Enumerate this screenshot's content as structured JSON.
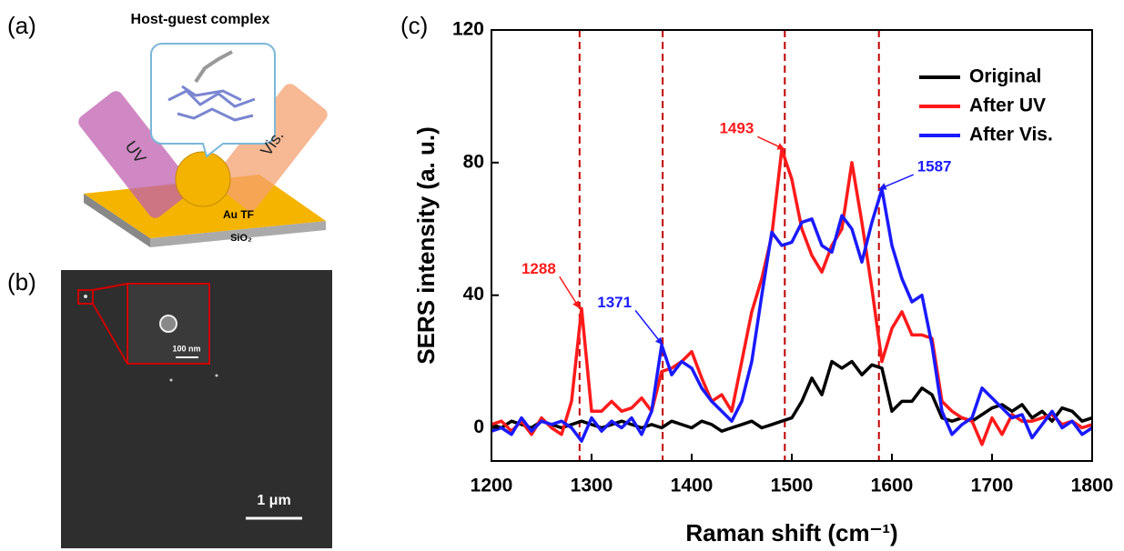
{
  "panels": {
    "a": {
      "label": "(a)",
      "title": "Host-guest complex",
      "uv": "UV",
      "vis": "Vis.",
      "film": "Au TF",
      "substrate": "SiO₂"
    },
    "b": {
      "label": "(b)",
      "inset_scale": "100 nm",
      "scale": "1 μm"
    },
    "c": {
      "label": "(c)"
    }
  },
  "chart_data": {
    "type": "line",
    "xlabel": "Raman shift (cm⁻¹)",
    "ylabel": "SERS intensity (a. u.)",
    "x": [
      1200,
      1210,
      1220,
      1230,
      1240,
      1250,
      1260,
      1270,
      1280,
      1290,
      1300,
      1310,
      1320,
      1330,
      1340,
      1350,
      1360,
      1370,
      1380,
      1390,
      1400,
      1410,
      1420,
      1430,
      1440,
      1450,
      1460,
      1470,
      1480,
      1490,
      1500,
      1510,
      1520,
      1530,
      1540,
      1550,
      1560,
      1570,
      1580,
      1590,
      1600,
      1610,
      1620,
      1630,
      1640,
      1650,
      1660,
      1670,
      1680,
      1690,
      1700,
      1710,
      1720,
      1730,
      1740,
      1750,
      1760,
      1770,
      1780,
      1790,
      1800
    ],
    "series": [
      {
        "name": "Original",
        "color": "#000000",
        "values": [
          1,
          0,
          2,
          1,
          0,
          2,
          1,
          0,
          1,
          2,
          1,
          0,
          1,
          2,
          1,
          0,
          1,
          0,
          2,
          1,
          0,
          2,
          1,
          -1,
          0,
          1,
          2,
          0,
          1,
          2,
          3,
          8,
          15,
          10,
          20,
          18,
          20,
          16,
          19,
          18,
          5,
          8,
          8,
          12,
          10,
          3,
          2,
          3,
          2,
          4,
          6,
          7,
          5,
          7,
          3,
          5,
          2,
          6,
          5,
          2,
          3
        ]
      },
      {
        "name": "After UV",
        "color": "#ff1a1a",
        "values": [
          1,
          2,
          -1,
          2,
          -2,
          3,
          0,
          -2,
          8,
          36,
          5,
          5,
          8,
          5,
          6,
          9,
          5,
          17,
          18,
          20,
          23,
          15,
          8,
          10,
          5,
          20,
          35,
          45,
          58,
          84,
          75,
          60,
          52,
          47,
          55,
          60,
          80,
          62,
          42,
          20,
          30,
          35,
          28,
          28,
          27,
          8,
          5,
          3,
          2,
          -5,
          3,
          -2,
          4,
          2,
          2,
          3,
          4,
          1,
          2,
          0,
          1
        ]
      },
      {
        "name": "After Vis.",
        "color": "#1a1aff",
        "values": [
          -1,
          0,
          -2,
          3,
          -1,
          2,
          1,
          2,
          0,
          -4,
          3,
          -1,
          2,
          0,
          3,
          -2,
          5,
          25,
          16,
          20,
          18,
          12,
          8,
          5,
          2,
          8,
          20,
          40,
          59,
          55,
          56,
          62,
          63,
          55,
          53,
          64,
          60,
          50,
          62,
          72,
          55,
          45,
          38,
          40,
          25,
          5,
          -2,
          1,
          3,
          12,
          9,
          6,
          3,
          4,
          -3,
          1,
          5,
          0,
          2,
          -2,
          0
        ]
      }
    ],
    "annotations": [
      {
        "x": 1288,
        "y": 36,
        "color": "#ff1a1a"
      },
      {
        "x": 1371,
        "y": 25,
        "color": "#1a1aff"
      },
      {
        "x": 1493,
        "y": 84,
        "color": "#ff1a1a"
      },
      {
        "x": 1587,
        "y": 72,
        "color": "#1a1aff"
      }
    ],
    "reference_line_color": "#c00000",
    "xlim": [
      1200,
      1800
    ],
    "ylim": [
      -10,
      120
    ],
    "xticks": [
      1200,
      1300,
      1400,
      1500,
      1600,
      1700,
      1800
    ],
    "yticks": [
      0,
      40,
      80,
      120
    ],
    "legend": "upper right"
  }
}
